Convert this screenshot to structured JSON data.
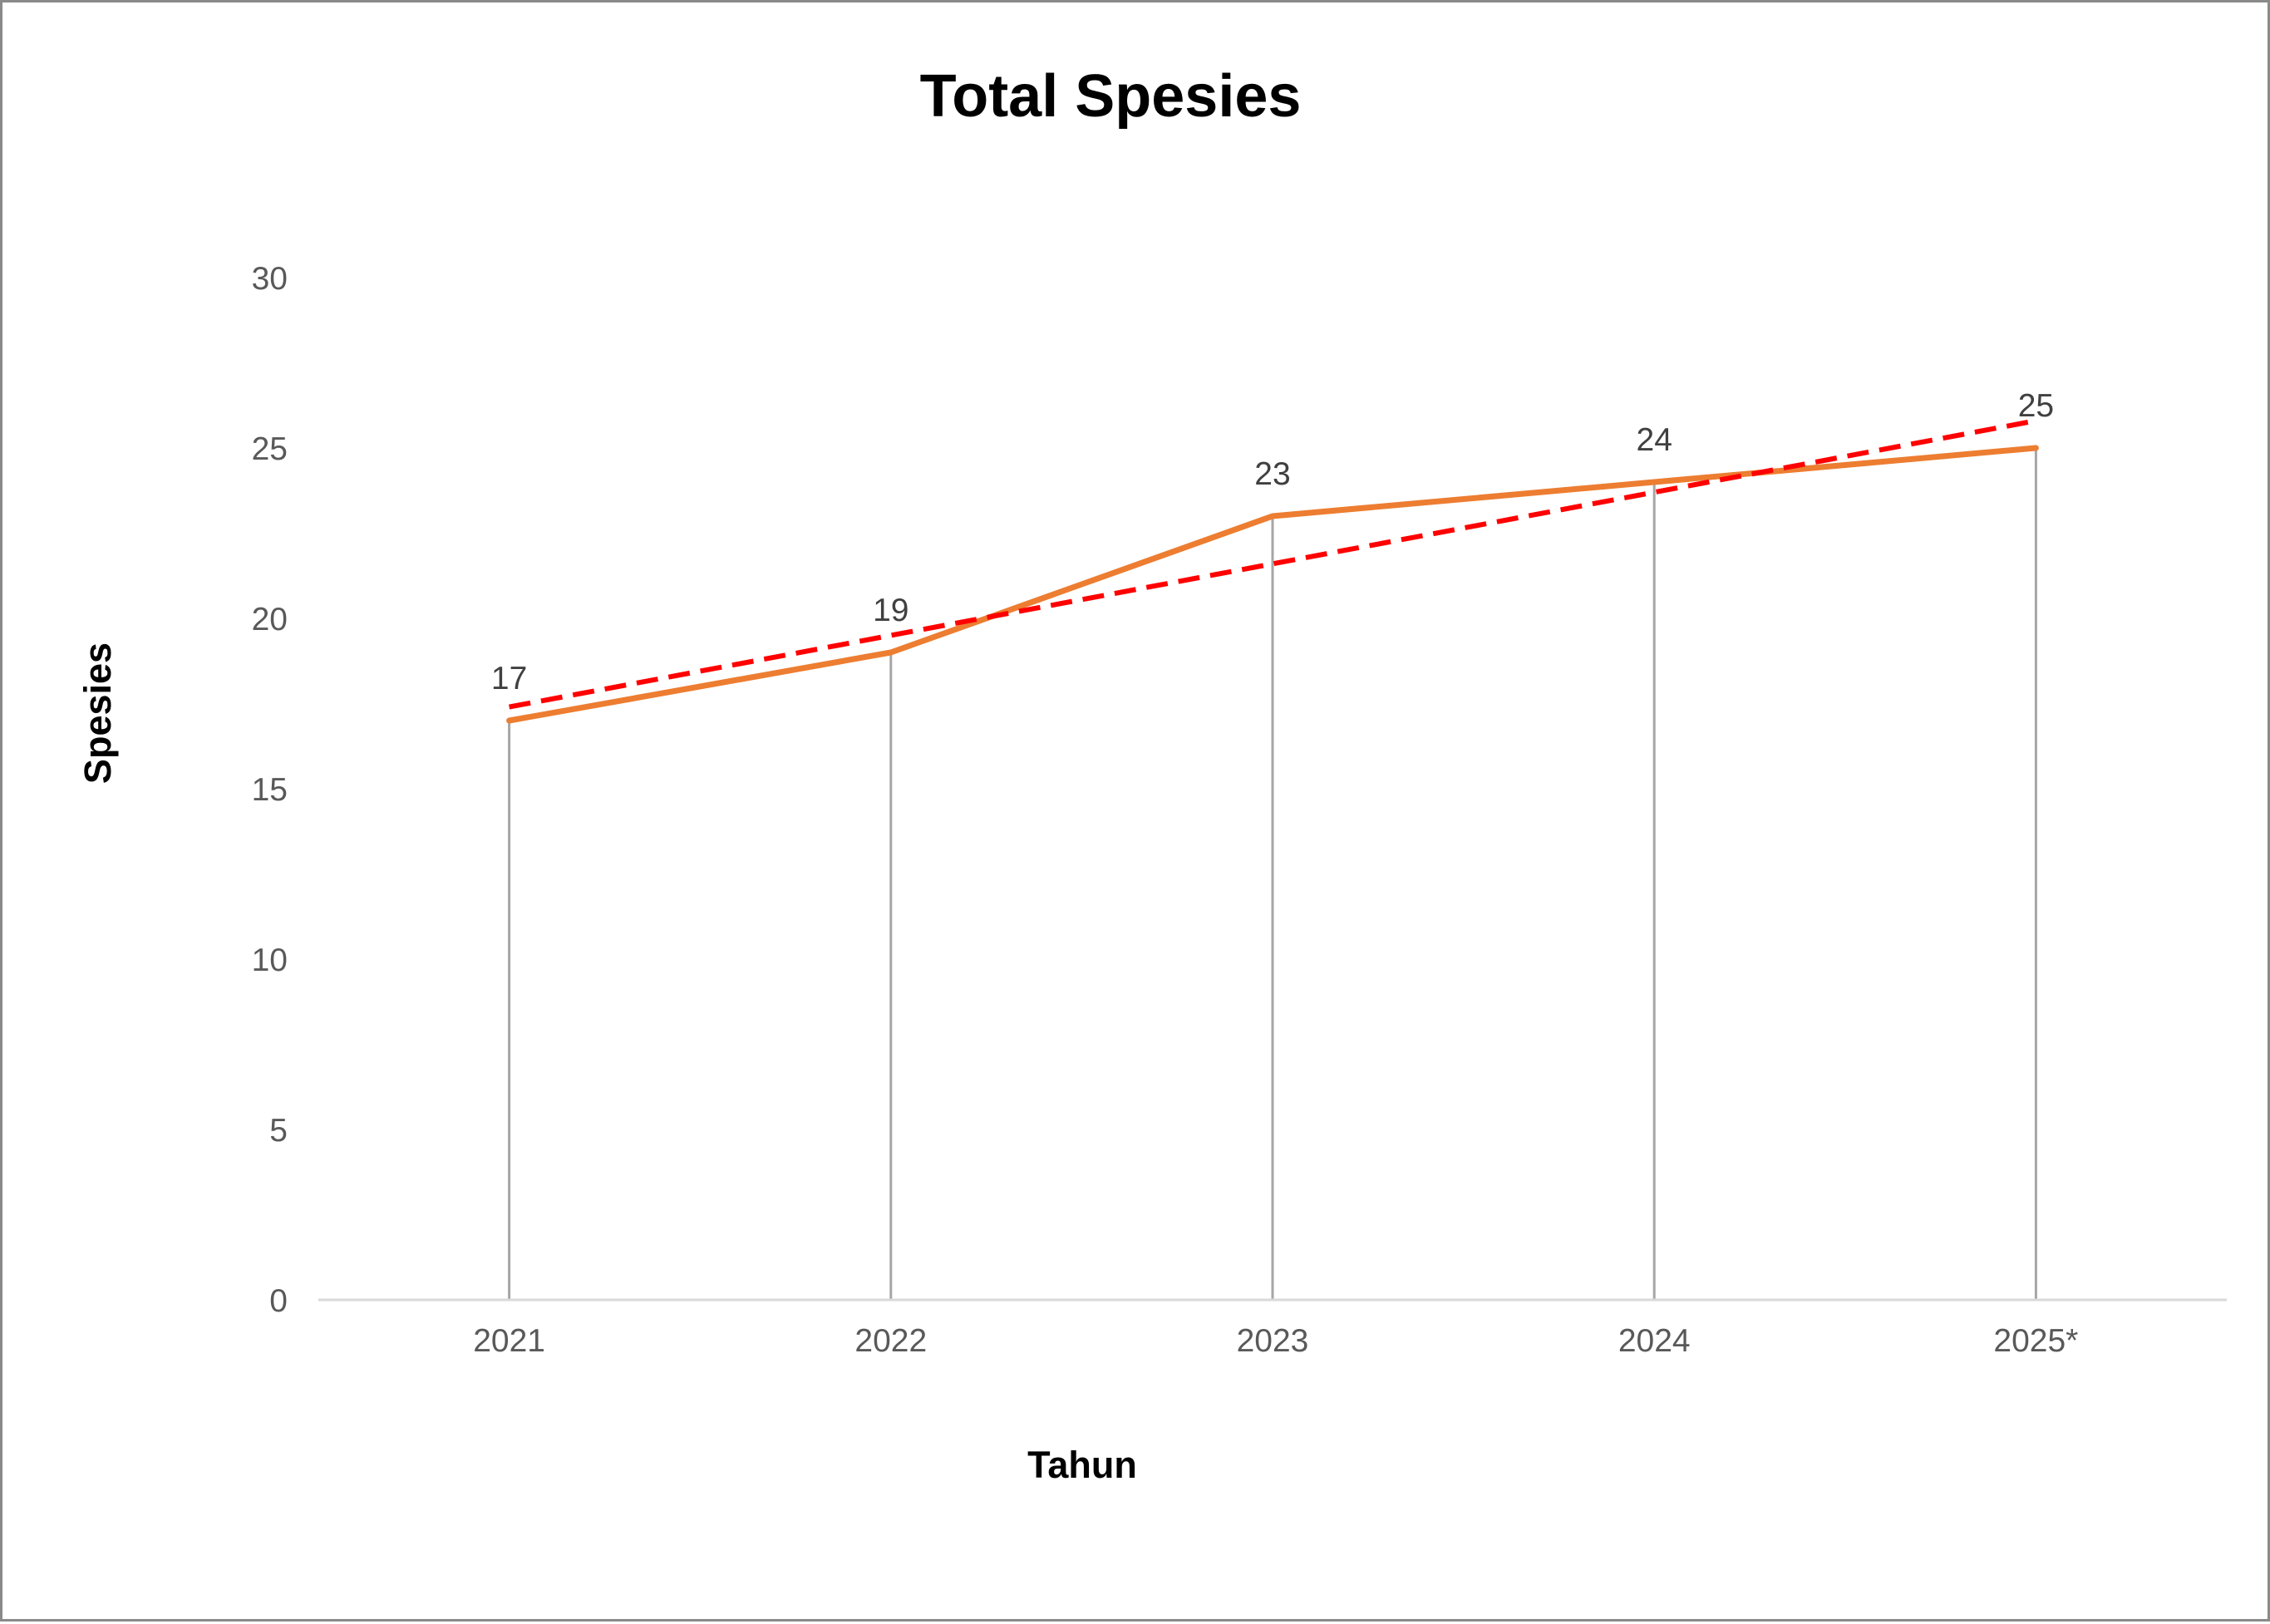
{
  "chart_data": {
    "type": "line",
    "title": "Total Spesies",
    "xlabel": "Tahun",
    "ylabel": "Spesies",
    "categories": [
      "2021",
      "2022",
      "2023",
      "2024",
      "2025*"
    ],
    "series": [
      {
        "values": [
          17,
          19,
          23,
          24,
          25
        ],
        "color": "#ED7D31",
        "data_labels": true
      }
    ],
    "trendline": {
      "type": "linear",
      "color": "#FF0000",
      "style": "dashed"
    },
    "ylim": [
      0,
      30
    ],
    "yticks": [
      0,
      5,
      10,
      15,
      20,
      25,
      30
    ],
    "drop_lines": true,
    "grid": false,
    "legend": "none"
  }
}
